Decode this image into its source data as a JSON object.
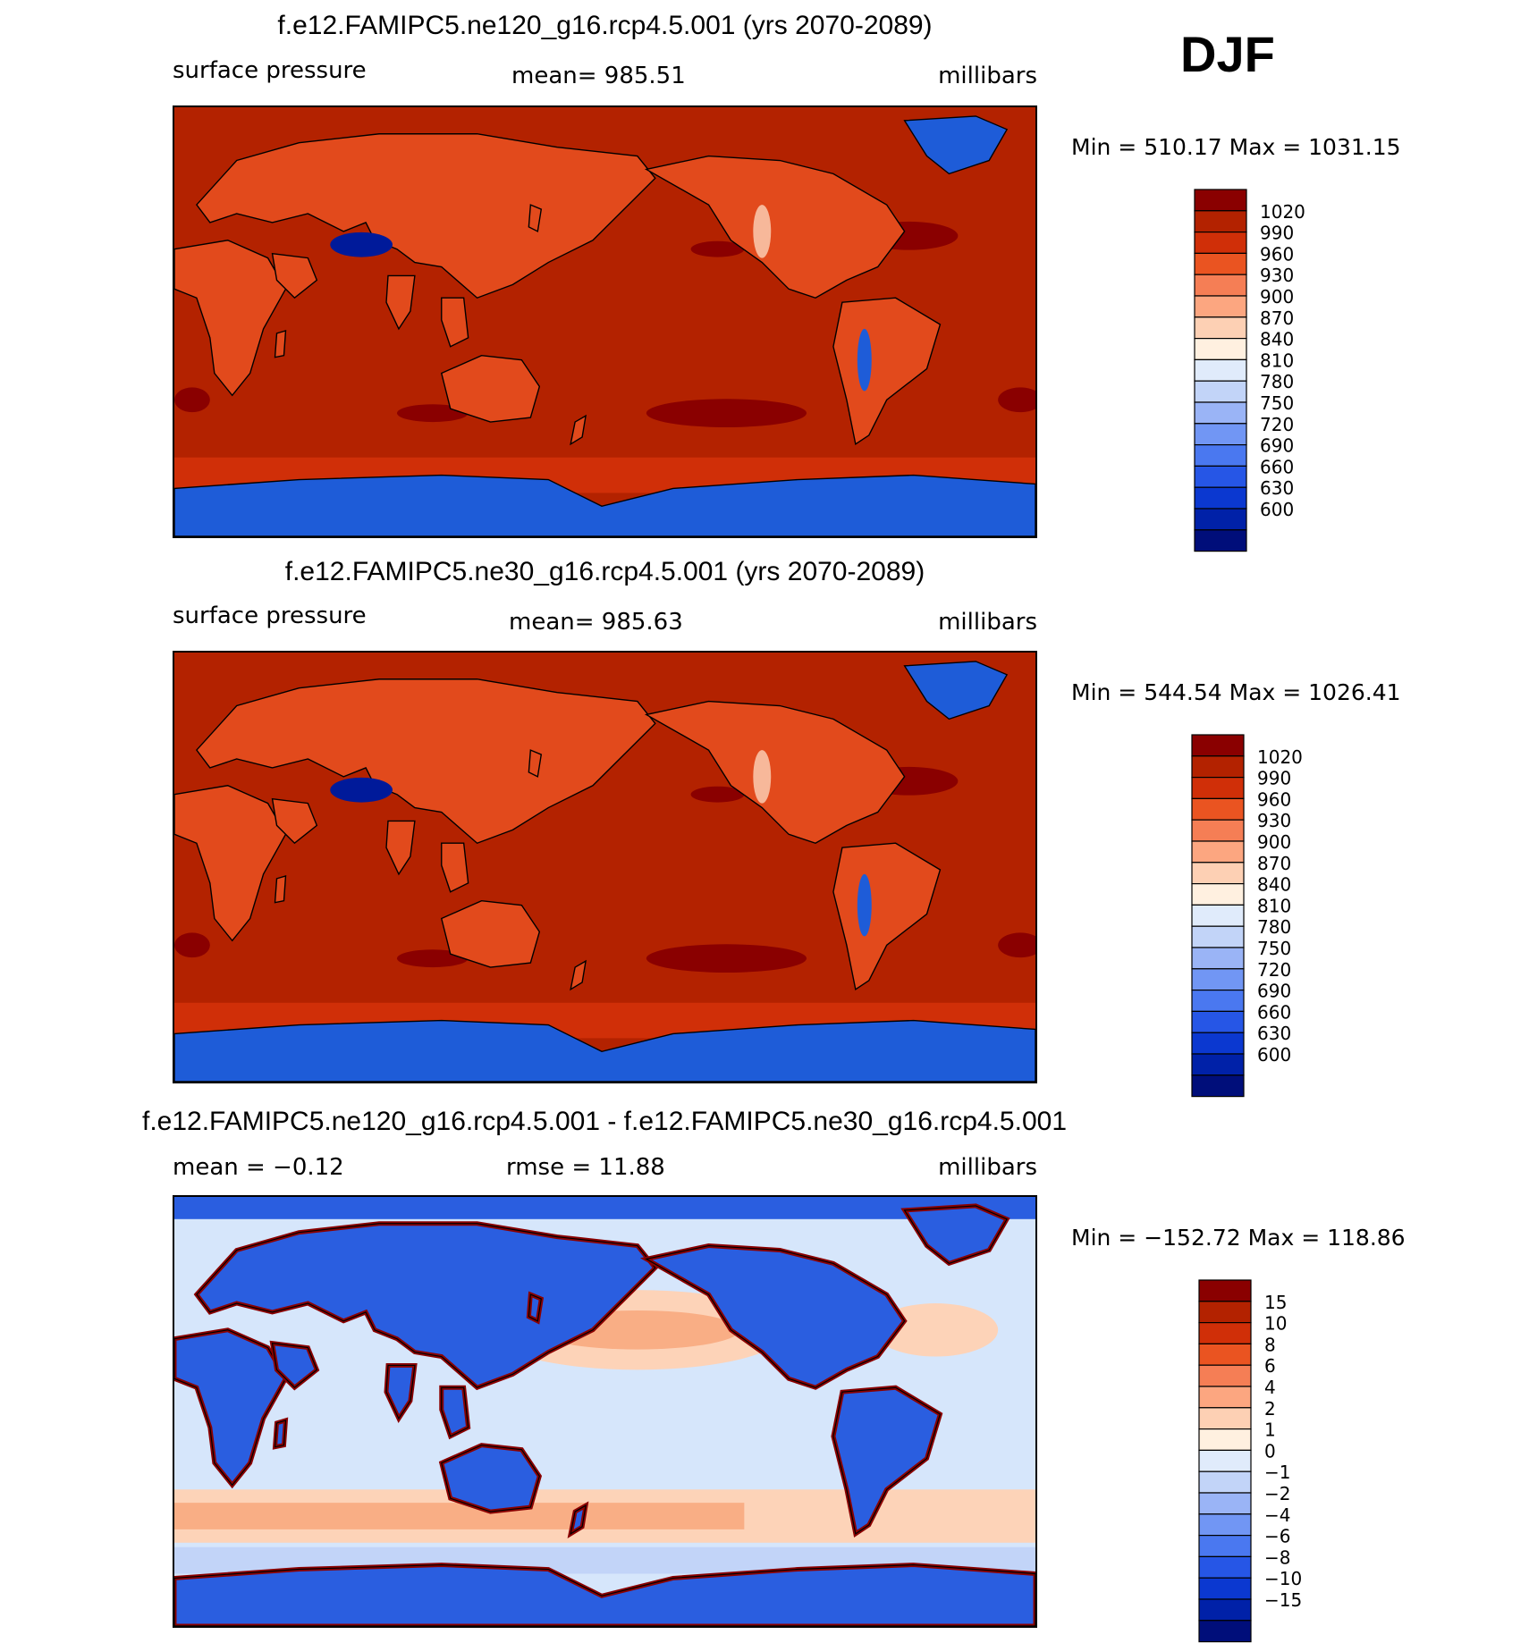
{
  "season": "DJF",
  "colors": {
    "land_border": "#000000",
    "ocean_base": "#b32200",
    "high_dark": "#8a0000",
    "sea_ice_blue": "#1e5cd8"
  },
  "panels": [
    {
      "id": "ne120",
      "title": "f.e12.FAMIPC5.ne120_g16.rcp4.5.001 (yrs 2070-2089)",
      "variable": "surface pressure",
      "stat_text": "mean=  985.51",
      "units": "millibars",
      "minmax_text": "Min  =  510.17  Max  =  1031.15"
    },
    {
      "id": "ne30",
      "title": "f.e12.FAMIPC5.ne30_g16.rcp4.5.001 (yrs 2070-2089)",
      "variable": "surface pressure",
      "stat_text": "mean=  985.63",
      "units": "millibars",
      "minmax_text": "Min  =  544.54  Max  =  1026.41"
    },
    {
      "id": "diff",
      "title": "f.e12.FAMIPC5.ne120_g16.rcp4.5.001 - f.e12.FAMIPC5.ne30_g16.rcp4.5.001",
      "stat_left_text": "mean  =    −0.12",
      "stat_text": "rmse  =    11.88",
      "units": "millibars",
      "minmax_text": "Min  =  −152.72  Max  =  118.86"
    }
  ],
  "chart_data": [
    {
      "type": "heatmap",
      "title": "f.e12.FAMIPC5.ne120_g16.rcp4.5.001 (yrs 2070-2089)",
      "variable": "surface pressure",
      "units": "millibars",
      "mean": 985.51,
      "min": 510.17,
      "max": 1031.15,
      "levels": [
        600,
        630,
        660,
        690,
        720,
        750,
        780,
        810,
        840,
        870,
        900,
        930,
        960,
        990,
        1020
      ],
      "level_labels": [
        "1020",
        "990",
        "960",
        "930",
        "900",
        "870",
        "840",
        "810",
        "780",
        "750",
        "720",
        "690",
        "660",
        "630",
        "600"
      ],
      "colors": [
        "#000e7a",
        "#0021a8",
        "#0b38d0",
        "#2656e6",
        "#4a78f0",
        "#7196f4",
        "#9ab4f6",
        "#c2d4f8",
        "#e0ebfb",
        "#fff0e0",
        "#fdd0b4",
        "#fca680",
        "#f57e55",
        "#ea5421",
        "#d02f08",
        "#b32200",
        "#8a0000"
      ]
    },
    {
      "type": "heatmap",
      "title": "f.e12.FAMIPC5.ne30_g16.rcp4.5.001 (yrs 2070-2089)",
      "variable": "surface pressure",
      "units": "millibars",
      "mean": 985.63,
      "min": 544.54,
      "max": 1026.41,
      "levels": [
        600,
        630,
        660,
        690,
        720,
        750,
        780,
        810,
        840,
        870,
        900,
        930,
        960,
        990,
        1020
      ],
      "level_labels": [
        "1020",
        "990",
        "960",
        "930",
        "900",
        "870",
        "840",
        "810",
        "780",
        "750",
        "720",
        "690",
        "660",
        "630",
        "600"
      ],
      "colors": [
        "#000e7a",
        "#0021a8",
        "#0b38d0",
        "#2656e6",
        "#4a78f0",
        "#7196f4",
        "#9ab4f6",
        "#c2d4f8",
        "#e0ebfb",
        "#fff0e0",
        "#fdd0b4",
        "#fca680",
        "#f57e55",
        "#ea5421",
        "#d02f08",
        "#b32200",
        "#8a0000"
      ]
    },
    {
      "type": "heatmap",
      "title": "f.e12.FAMIPC5.ne120_g16.rcp4.5.001 - f.e12.FAMIPC5.ne30_g16.rcp4.5.001",
      "units": "millibars",
      "mean": -0.12,
      "rmse": 11.88,
      "min": -152.72,
      "max": 118.86,
      "levels": [
        -15,
        -10,
        -8,
        -6,
        -4,
        -2,
        -1,
        0,
        1,
        2,
        4,
        6,
        8,
        10,
        15
      ],
      "level_labels": [
        "15",
        "10",
        "8",
        "6",
        "4",
        "2",
        "1",
        "0",
        "−1",
        "−2",
        "−4",
        "−6",
        "−8",
        "−10",
        "−15"
      ],
      "colors": [
        "#000e7a",
        "#0021a8",
        "#0b38d0",
        "#2656e6",
        "#4a78f0",
        "#7196f4",
        "#9ab4f6",
        "#c2d4f8",
        "#e0ebfb",
        "#fff0e0",
        "#fdd0b4",
        "#fca680",
        "#f57e55",
        "#ea5421",
        "#d02f08",
        "#b32200",
        "#8a0000"
      ]
    }
  ]
}
